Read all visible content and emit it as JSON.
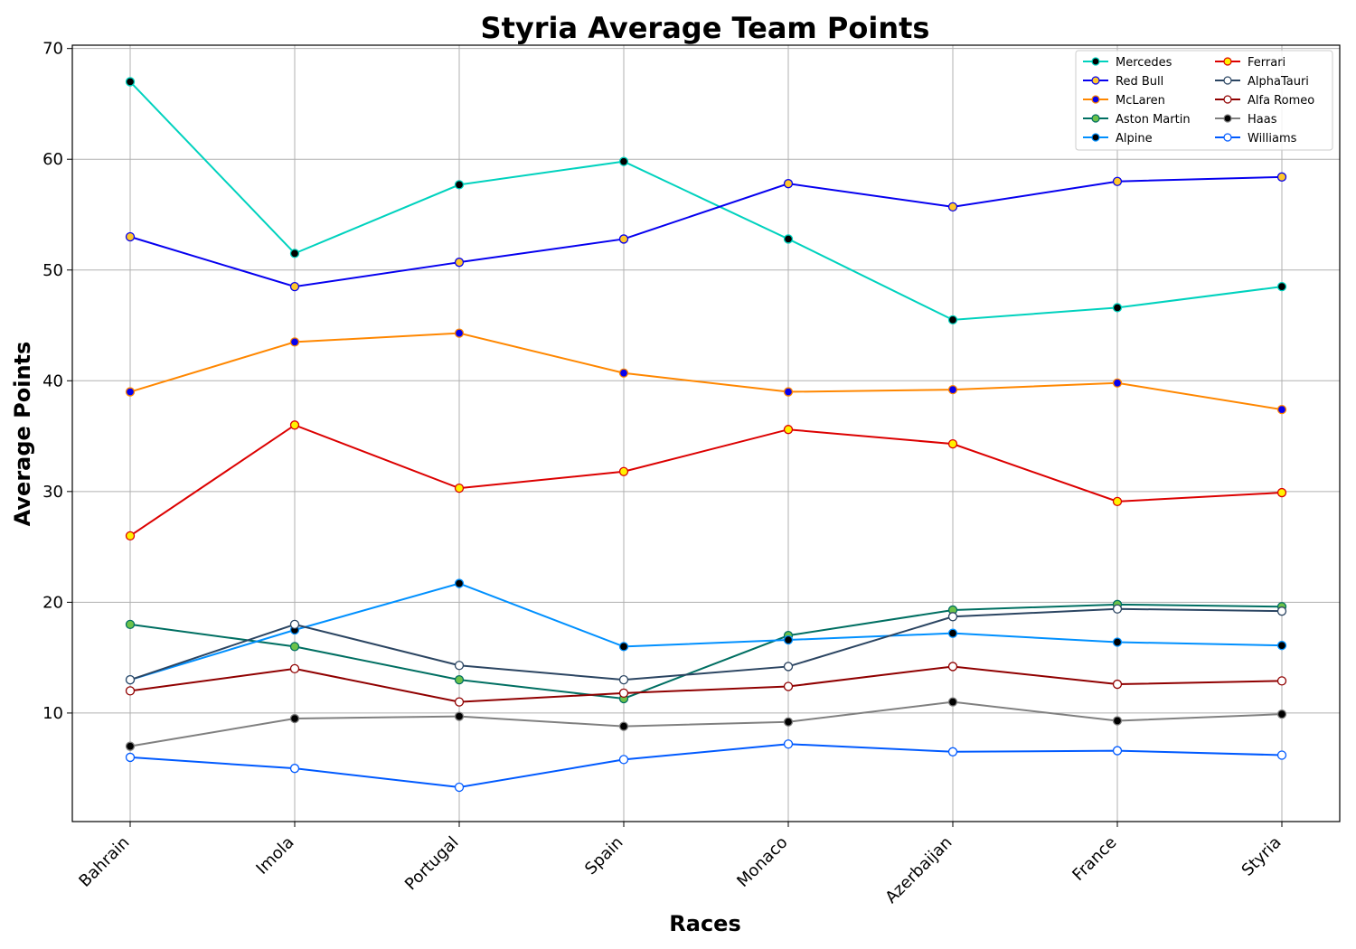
{
  "chart_data": {
    "type": "line",
    "title": "Styria Average Team Points",
    "xlabel": "Races",
    "ylabel": "Average Points",
    "categories": [
      "Bahrain",
      "Imola",
      "Portugal",
      "Spain",
      "Monaco",
      "Azerbaijan",
      "France",
      "Styria"
    ],
    "ylim": [
      0.2,
      70.3
    ],
    "yticks": [
      10,
      20,
      30,
      40,
      50,
      60,
      70
    ],
    "grid": true,
    "legend_position": "top-right",
    "legend_columns": 2,
    "series": [
      {
        "name": "Mercedes",
        "line_color": "#00d2be",
        "marker_fill": "#000000",
        "marker_edge": "#00d2be",
        "values": [
          67.0,
          51.5,
          57.7,
          59.8,
          52.8,
          45.5,
          46.6,
          48.5
        ]
      },
      {
        "name": "Red Bull",
        "line_color": "#0600ef",
        "marker_fill": "#ffc72c",
        "marker_edge": "#0600ef",
        "values": [
          53.0,
          48.5,
          50.7,
          52.8,
          57.8,
          55.7,
          58.0,
          58.4
        ]
      },
      {
        "name": "McLaren",
        "line_color": "#ff8700",
        "marker_fill": "#0600ef",
        "marker_edge": "#ff8700",
        "values": [
          39.0,
          43.5,
          44.3,
          40.7,
          39.0,
          39.2,
          39.8,
          37.4
        ]
      },
      {
        "name": "Aston Martin",
        "line_color": "#006f62",
        "marker_fill": "#6cc24a",
        "marker_edge": "#006f62",
        "values": [
          18.0,
          16.0,
          13.0,
          11.3,
          17.0,
          19.3,
          19.8,
          19.6
        ]
      },
      {
        "name": "Alpine",
        "line_color": "#0090ff",
        "marker_fill": "#000000",
        "marker_edge": "#0090ff",
        "values": [
          13.0,
          17.5,
          21.7,
          16.0,
          16.6,
          17.2,
          16.4,
          16.1
        ]
      },
      {
        "name": "Ferrari",
        "line_color": "#dc0000",
        "marker_fill": "#fff200",
        "marker_edge": "#dc0000",
        "values": [
          26.0,
          36.0,
          30.3,
          31.8,
          35.6,
          34.3,
          29.1,
          29.9
        ]
      },
      {
        "name": "AlphaTauri",
        "line_color": "#2b4562",
        "marker_fill": "#ffffff",
        "marker_edge": "#2b4562",
        "values": [
          13.0,
          18.0,
          14.3,
          13.0,
          14.2,
          18.7,
          19.4,
          19.2
        ]
      },
      {
        "name": "Alfa Romeo",
        "line_color": "#900000",
        "marker_fill": "#ffffff",
        "marker_edge": "#900000",
        "values": [
          12.0,
          14.0,
          11.0,
          11.8,
          12.4,
          14.2,
          12.6,
          12.9
        ]
      },
      {
        "name": "Haas",
        "line_color": "#808080",
        "marker_fill": "#000000",
        "marker_edge": "#808080",
        "values": [
          7.0,
          9.5,
          9.7,
          8.8,
          9.2,
          11.0,
          9.3,
          9.9
        ]
      },
      {
        "name": "Williams",
        "line_color": "#005aff",
        "marker_fill": "#ffffff",
        "marker_edge": "#005aff",
        "values": [
          6.0,
          5.0,
          3.3,
          5.8,
          7.2,
          6.5,
          6.6,
          6.2
        ]
      }
    ]
  }
}
